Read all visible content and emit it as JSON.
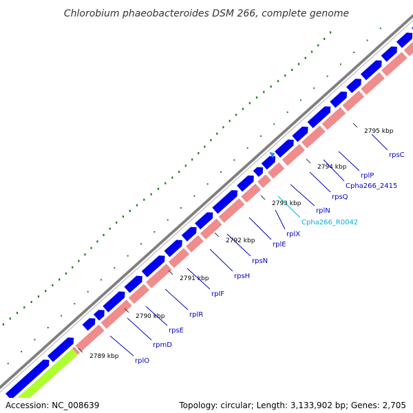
{
  "title": "Chlorobium phaeobacteroides DSM 266, complete genome",
  "footer": {
    "accession": "Accession: NC_008639",
    "topology": "Topology: circular; Length: 3,133,902 bp; Genes: 2,705"
  },
  "colors": {
    "backbone": "#808080",
    "forward_gene": "#0000ee",
    "rna_gene": "#1e90ff",
    "cds_track": "#f08c8c",
    "highlight_track": "#adff2f",
    "gc_dots": "#1a7a1a",
    "label_line": "#0000cc",
    "rna_label": "#00b0d8"
  },
  "tick_labels": [
    "2789 kbp",
    "2790 kbp",
    "2791 kbp",
    "2792 kbp",
    "2793 kbp",
    "2794 kbp",
    "2795 kbp"
  ],
  "genes": [
    {
      "label": "rplO",
      "color": "#0000cc"
    },
    {
      "label": "rpmD",
      "color": "#0000cc"
    },
    {
      "label": "rpsE",
      "color": "#0000cc"
    },
    {
      "label": "rplR",
      "color": "#0000cc"
    },
    {
      "label": "rplF",
      "color": "#0000cc"
    },
    {
      "label": "rpsH",
      "color": "#0000cc"
    },
    {
      "label": "rpsN",
      "color": "#0000cc"
    },
    {
      "label": "rplE",
      "color": "#0000cc"
    },
    {
      "label": "rplX",
      "color": "#0000cc"
    },
    {
      "label": "Cpha266_R0042",
      "color": "#00b0d8"
    },
    {
      "label": "rplN",
      "color": "#0000cc"
    },
    {
      "label": "rpsQ",
      "color": "#0000cc"
    },
    {
      "label": "Cpha266_2415",
      "color": "#0000cc"
    },
    {
      "label": "rplP",
      "color": "#0000cc"
    },
    {
      "label": "rpsC",
      "color": "#0000cc"
    }
  ]
}
